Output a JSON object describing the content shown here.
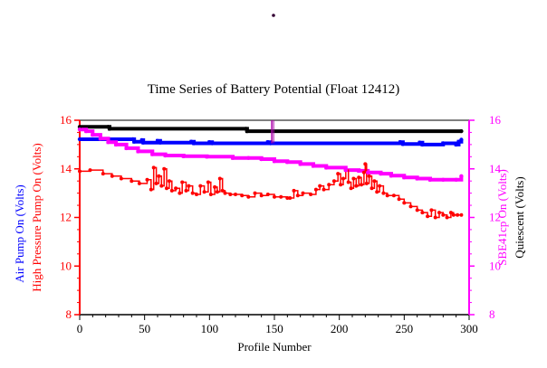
{
  "chart_data": {
    "type": "line",
    "title": "Time Series of Battery Potential (Float 12412)",
    "xlabel": "Profile Number",
    "xlim": [
      0,
      300
    ],
    "ylim": [
      8,
      16
    ],
    "x_ticks": [
      "0",
      "50",
      "100",
      "150",
      "200",
      "250",
      "300"
    ],
    "y_ticks": [
      "8",
      "10",
      "12",
      "14",
      "16"
    ],
    "left_axis_labels": [
      {
        "text": "Air Pump On (Volts)",
        "color": "#0000ff"
      },
      {
        "text": "High Pressure Pump On (Volts)",
        "color": "#ff0000"
      }
    ],
    "right_axis_labels": [
      {
        "text": "SBE41cp On (Volts)",
        "color": "#ff00ff"
      },
      {
        "text": "Quiescent (Volts)",
        "color": "#000000"
      }
    ],
    "left_axis_color": "#ff0000",
    "right_axis_color": "#ff00ff",
    "series": [
      {
        "key": "quiescent",
        "color": "#000000",
        "style": "thick-step",
        "points": [
          [
            0,
            15.73
          ],
          [
            22,
            15.73
          ],
          [
            23,
            15.65
          ],
          [
            128,
            15.65
          ],
          [
            129,
            15.55
          ],
          [
            294,
            15.55
          ]
        ]
      },
      {
        "key": "air-pump",
        "color": "#0000ff",
        "style": "thick-step",
        "points": [
          [
            0,
            15.22
          ],
          [
            41,
            15.22
          ],
          [
            42,
            15.12
          ],
          [
            48,
            15.18
          ],
          [
            49,
            15.08
          ],
          [
            60,
            15.15
          ],
          [
            62,
            15.08
          ],
          [
            86,
            15.12
          ],
          [
            88,
            15.05
          ],
          [
            100,
            15.1
          ],
          [
            102,
            15.05
          ],
          [
            145,
            15.1
          ],
          [
            147,
            15.05
          ],
          [
            247,
            15.1
          ],
          [
            249,
            15.02
          ],
          [
            262,
            15.08
          ],
          [
            264,
            15.0
          ],
          [
            280,
            15.05
          ],
          [
            290,
            15.0
          ],
          [
            292,
            15.12
          ],
          [
            294,
            15.2
          ]
        ]
      },
      {
        "key": "sbe41cp",
        "color": "#ff00ff",
        "style": "thick-step",
        "points": [
          [
            0,
            15.62
          ],
          [
            5,
            15.55
          ],
          [
            10,
            15.4
          ],
          [
            16,
            15.25
          ],
          [
            22,
            15.1
          ],
          [
            28,
            15.0
          ],
          [
            36,
            14.85
          ],
          [
            45,
            14.72
          ],
          [
            56,
            14.6
          ],
          [
            66,
            14.55
          ],
          [
            80,
            14.52
          ],
          [
            98,
            14.5
          ],
          [
            118,
            14.45
          ],
          [
            130,
            14.45
          ],
          [
            140,
            14.4
          ],
          [
            150,
            14.32
          ],
          [
            160,
            14.28
          ],
          [
            170,
            14.2
          ],
          [
            180,
            14.12
          ],
          [
            190,
            14.05
          ],
          [
            205,
            13.95
          ],
          [
            215,
            13.92
          ],
          [
            222,
            13.85
          ],
          [
            232,
            13.8
          ],
          [
            240,
            13.72
          ],
          [
            250,
            13.65
          ],
          [
            260,
            13.6
          ],
          [
            270,
            13.55
          ],
          [
            280,
            13.55
          ],
          [
            290,
            13.55
          ],
          [
            294,
            13.7
          ]
        ]
      },
      {
        "key": "high-pressure-pump",
        "color": "#ff0000",
        "style": "step-markers",
        "points": [
          [
            0,
            13.9
          ],
          [
            8,
            13.95
          ],
          [
            18,
            13.8
          ],
          [
            25,
            13.7
          ],
          [
            32,
            13.6
          ],
          [
            40,
            13.5
          ],
          [
            46,
            13.4
          ],
          [
            52,
            13.55
          ],
          [
            55,
            13.15
          ],
          [
            57,
            14.05
          ],
          [
            59,
            13.4
          ],
          [
            61,
            13.7
          ],
          [
            63,
            13.3
          ],
          [
            65,
            14.0
          ],
          [
            67,
            13.2
          ],
          [
            69,
            13.5
          ],
          [
            71,
            13.1
          ],
          [
            74,
            13.2
          ],
          [
            77,
            13.0
          ],
          [
            79,
            13.45
          ],
          [
            82,
            13.1
          ],
          [
            84,
            13.3
          ],
          [
            87,
            13.0
          ],
          [
            90,
            12.95
          ],
          [
            93,
            13.3
          ],
          [
            96,
            13.05
          ],
          [
            99,
            13.45
          ],
          [
            101,
            12.95
          ],
          [
            104,
            13.25
          ],
          [
            106,
            13.05
          ],
          [
            108,
            13.6
          ],
          [
            110,
            13.1
          ],
          [
            112,
            13.0
          ],
          [
            116,
            12.95
          ],
          [
            120,
            12.95
          ],
          [
            125,
            12.9
          ],
          [
            130,
            12.85
          ],
          [
            135,
            13.0
          ],
          [
            140,
            12.9
          ],
          [
            145,
            12.95
          ],
          [
            150,
            12.85
          ],
          [
            155,
            12.85
          ],
          [
            160,
            12.8
          ],
          [
            162,
            12.8
          ],
          [
            165,
            13.1
          ],
          [
            168,
            12.9
          ],
          [
            172,
            13.0
          ],
          [
            178,
            12.95
          ],
          [
            182,
            13.15
          ],
          [
            185,
            13.3
          ],
          [
            188,
            13.15
          ],
          [
            192,
            13.35
          ],
          [
            196,
            13.5
          ],
          [
            199,
            13.8
          ],
          [
            201,
            13.35
          ],
          [
            203,
            13.6
          ],
          [
            205,
            13.95
          ],
          [
            207,
            13.45
          ],
          [
            209,
            13.2
          ],
          [
            211,
            13.6
          ],
          [
            213,
            13.3
          ],
          [
            215,
            13.65
          ],
          [
            217,
            13.35
          ],
          [
            219,
            13.85
          ],
          [
            220,
            14.2
          ],
          [
            221,
            13.4
          ],
          [
            223,
            13.7
          ],
          [
            225,
            13.2
          ],
          [
            227,
            13.5
          ],
          [
            229,
            13.05
          ],
          [
            231,
            13.3
          ],
          [
            234,
            13.0
          ],
          [
            237,
            12.9
          ],
          [
            242,
            12.9
          ],
          [
            246,
            12.75
          ],
          [
            250,
            12.6
          ],
          [
            255,
            12.45
          ],
          [
            260,
            12.3
          ],
          [
            264,
            12.2
          ],
          [
            268,
            12.05
          ],
          [
            271,
            12.3
          ],
          [
            274,
            12.0
          ],
          [
            277,
            12.2
          ],
          [
            280,
            12.1
          ],
          [
            283,
            12.0
          ],
          [
            286,
            12.2
          ],
          [
            288,
            12.1
          ],
          [
            291,
            12.1
          ],
          [
            294,
            12.1
          ]
        ]
      }
    ],
    "spike_marker": {
      "x": 148,
      "y_from": 15.05,
      "y_to": 16.0,
      "color": "#aa00aa"
    },
    "top_dot": {
      "color": "#330033"
    }
  }
}
